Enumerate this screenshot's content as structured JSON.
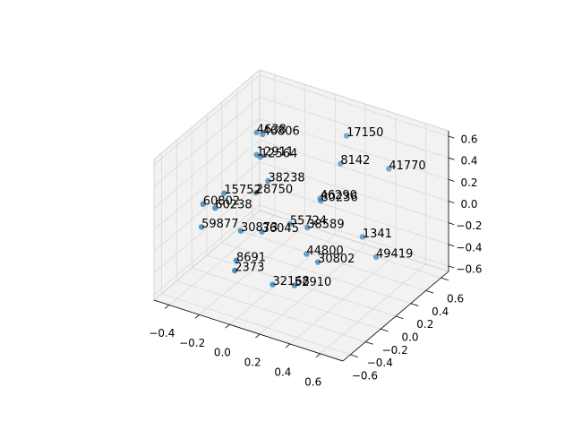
{
  "chart_data": {
    "type": "scatter3d",
    "color": "#1f77b4",
    "grid": true,
    "labels": [
      "4638",
      "46806",
      "17150",
      "12911",
      "12564",
      "8142",
      "41770",
      "38238",
      "15752",
      "28750",
      "46290",
      "80236",
      "60802",
      "60238",
      "59877",
      "30873",
      "36045",
      "55724",
      "38589",
      "1341",
      "44800",
      "49419",
      "30802",
      "8691",
      "2373",
      "32168",
      "52910"
    ],
    "x": [
      -0.24,
      -0.2,
      0.13,
      -0.23,
      -0.2,
      0.1,
      0.44,
      -0.15,
      -0.37,
      -0.3,
      0.12,
      0.13,
      -0.41,
      -0.33,
      -0.41,
      -0.2,
      -0.13,
      -0.04,
      0.1,
      0.38,
      0.13,
      0.44,
      0.19,
      -0.17,
      -0.16,
      0.02,
      0.13
    ],
    "y": [
      0.14,
      0.14,
      0.59,
      0.12,
      0.11,
      0.57,
      0.53,
      0.11,
      -0.03,
      0.25,
      0.26,
      0.25,
      -0.23,
      -0.23,
      -0.25,
      -0.15,
      -0.01,
      0.18,
      0.13,
      0.3,
      0.06,
      0.36,
      0.09,
      -0.27,
      -0.31,
      -0.17,
      -0.1
    ],
    "z": [
      0.52,
      0.52,
      0.39,
      0.33,
      0.33,
      0.13,
      0.26,
      0.13,
      0.0,
      -0.13,
      0.0,
      -0.01,
      0.0,
      0.0,
      -0.2,
      -0.2,
      -0.26,
      -0.26,
      -0.2,
      -0.26,
      -0.39,
      -0.455,
      -0.455,
      -0.39,
      -0.455,
      -0.585,
      -0.585
    ],
    "xlim": [
      -0.5,
      0.75
    ],
    "ylim": [
      -0.7,
      0.7
    ],
    "zlim": [
      -0.65,
      0.65
    ],
    "xticks": [
      {
        "value": -0.4,
        "label": "−0.4"
      },
      {
        "value": -0.2,
        "label": "−0.2"
      },
      {
        "value": 0,
        "label": "0.0"
      },
      0.2,
      0.4,
      0.6
    ],
    "yticks": [
      {
        "value": -0.6,
        "label": "−0.6"
      },
      {
        "value": -0.4,
        "label": "−0.4"
      },
      {
        "value": -0.2,
        "label": "−0.2"
      },
      {
        "value": 0,
        "label": "0.0"
      },
      0.2,
      0.4,
      0.6
    ],
    "zticks": [
      {
        "value": -0.6,
        "label": "−0.6"
      },
      {
        "value": -0.4,
        "label": "−0.4"
      },
      {
        "value": -0.2,
        "label": "−0.2"
      },
      {
        "value": 0,
        "label": "0.0"
      },
      0.2,
      0.4,
      0.6
    ]
  }
}
